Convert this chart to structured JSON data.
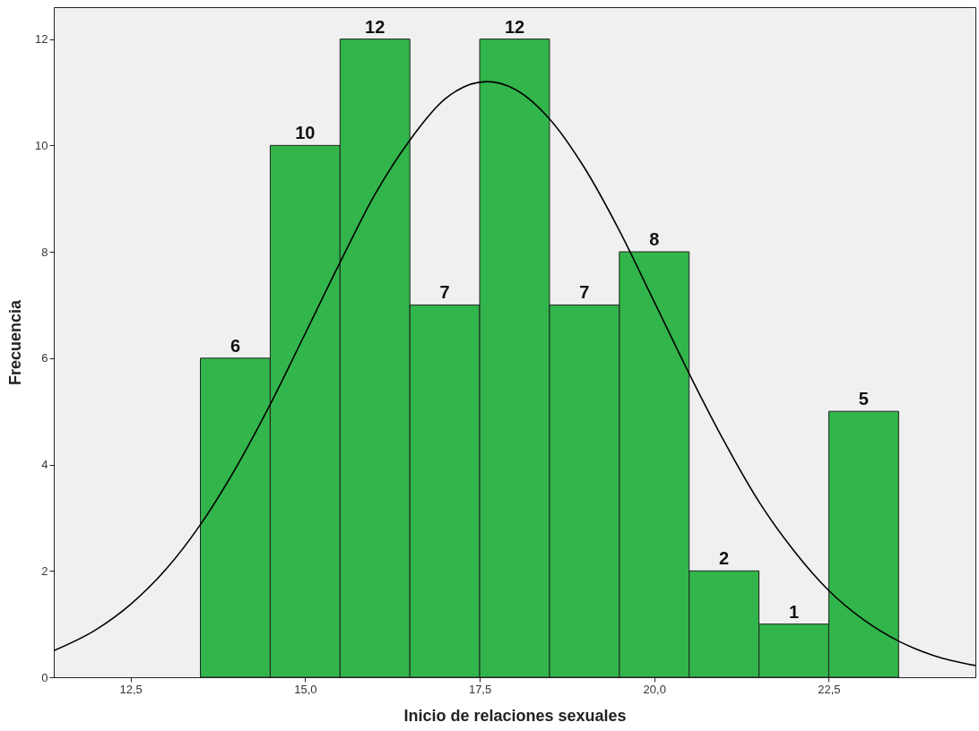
{
  "chart_data": {
    "type": "histogram",
    "xlabel": "Inicio de relaciones sexuales",
    "ylabel": "Frecuencia",
    "bins": [
      13.5,
      14.5,
      15.5,
      16.5,
      17.5,
      18.5,
      19.5,
      20.5,
      21.5,
      22.5,
      23.5
    ],
    "values": [
      6,
      10,
      12,
      7,
      12,
      7,
      8,
      2,
      1,
      5
    ],
    "color": "#32b54a",
    "value_labels": [
      "6",
      "10",
      "12",
      "7",
      "12",
      "7",
      "8",
      "2",
      "1",
      "5"
    ],
    "series": [
      {
        "type": "line",
        "color": "#000000",
        "x": [
          11.4,
          12.0,
          12.5,
          13.0,
          13.5,
          14.0,
          14.5,
          15.0,
          15.5,
          16.0,
          16.5,
          17.0,
          17.6,
          18.0,
          18.5,
          19.0,
          19.5,
          20.0,
          20.5,
          21.0,
          21.5,
          22.0,
          22.5,
          23.0,
          23.5,
          24.0,
          24.6
        ],
        "values": [
          0.5,
          0.89,
          1.37,
          2.02,
          2.87,
          3.92,
          5.13,
          6.46,
          7.8,
          9.08,
          10.1,
          10.87,
          11.2,
          11.06,
          10.5,
          9.58,
          8.4,
          7.06,
          5.71,
          4.44,
          3.3,
          2.38,
          1.63,
          1.08,
          0.68,
          0.41,
          0.22
        ]
      }
    ],
    "xlim": [
      11.4,
      24.6
    ],
    "ylim": [
      0,
      12.6
    ],
    "xticks": [
      {
        "value": 12.5,
        "label": "12,5"
      },
      {
        "value": 15,
        "label": "15,0"
      },
      {
        "value": 17.5,
        "label": "17,5"
      },
      {
        "value": 20,
        "label": "20,0"
      },
      {
        "value": 22.5,
        "label": "22,5"
      }
    ],
    "yticks": [
      0,
      2,
      4,
      6,
      8,
      10,
      12
    ],
    "grid": false
  }
}
